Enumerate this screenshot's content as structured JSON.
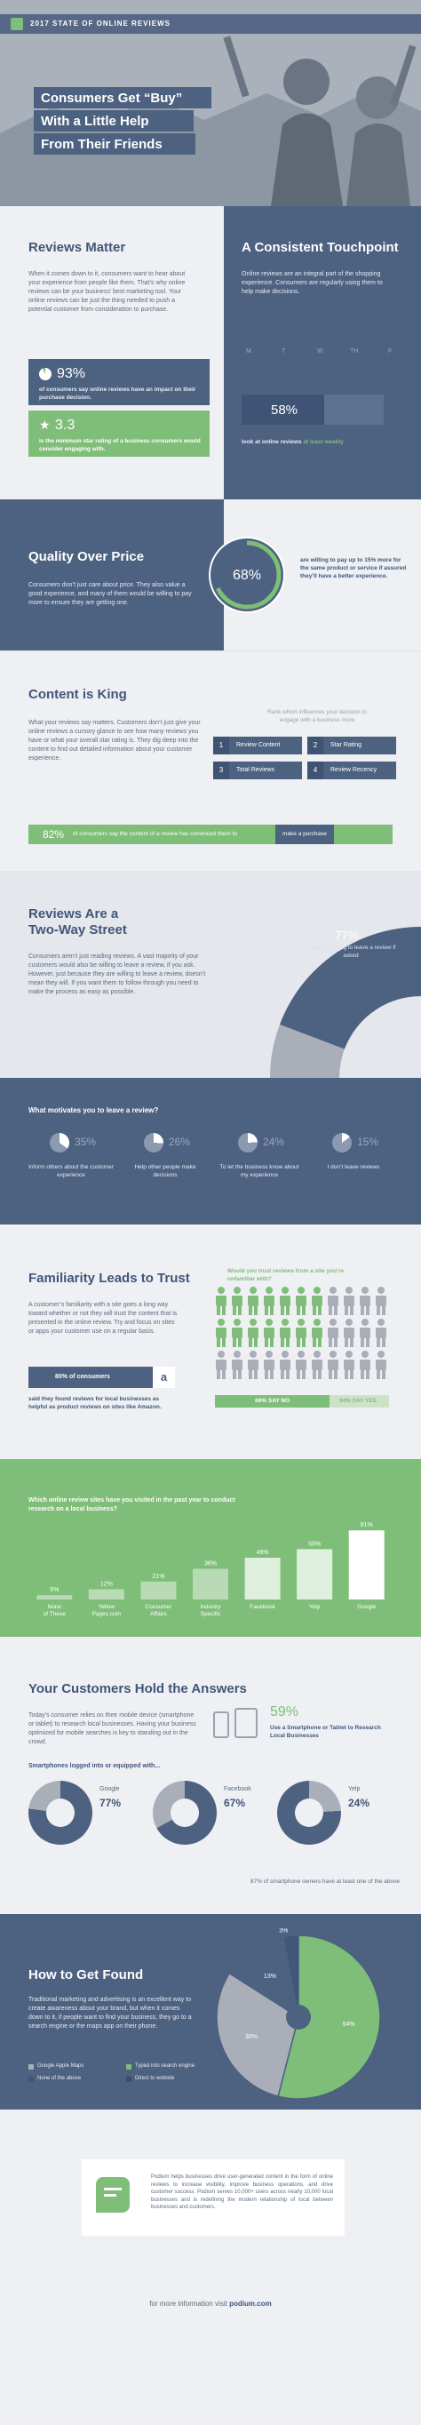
{
  "colors": {
    "navy": "#4d6180",
    "green": "#7fbe78",
    "light": "#eef0f3",
    "grey": "#a9aeb8"
  },
  "header": {
    "badge": "2017 STATE OF ONLINE REVIEWS",
    "title_lines": [
      "Consumers Get “Buy”",
      "With a Little Help",
      "From Their Friends"
    ]
  },
  "reviews_matter": {
    "heading": "Reviews Matter",
    "body": "When it comes down to it, consumers want to hear about your experience from people like them. That’s why online reviews can be your business’ best marketing tool. Your online reviews can be just the thing needed to push a potential customer from consideration to purchase.",
    "stat1_value": "93%",
    "stat1_text": "of consumers say online reviews have an impact on their purchase decision.",
    "stat2_value": "3.3",
    "stat2_text": "is the minimum star rating of a business consumers would consider engaging with."
  },
  "touchpoint": {
    "heading": "A Consistent Touchpoint",
    "body": "Online reviews are an integral part of the shopping experience. Consumers are regularly using them to help make decisions.",
    "days": [
      "M",
      "T",
      "W",
      "TH",
      "F"
    ],
    "percent": "58%",
    "caption_a": "look at online reviews",
    "caption_b": "at least weekly"
  },
  "quality": {
    "heading": "Quality Over Price",
    "body": "Consumers don’t just care about price. They also value a good experience, and many of them would be willing to pay more to ensure they are getting one.",
    "percent": "68%",
    "circle_value": 68,
    "caption_a": "are willing to pay up to 15% more for the same product or service if assured they’ll have",
    "caption_b": "a better experience."
  },
  "content_king": {
    "heading": "Content is King",
    "body": "What your reviews say matters. Customers don’t just give your online reviews a cursory glance to see how many reviews you have or what your overall star rating is. They dig deep into the content to find out detailed information about your customer experience.",
    "rank_title": "Rank which influences your decision to engage with a business more",
    "items": [
      {
        "rank": "1",
        "label": "Review Content"
      },
      {
        "rank": "2",
        "label": "Star Rating"
      },
      {
        "rank": "3",
        "label": "Total Reviews"
      },
      {
        "rank": "4",
        "label": "Review Recency"
      }
    ],
    "banner_percent": "82%",
    "banner_text": "of consumers say the content of a review has convinced them to",
    "banner_highlight": "make a purchase"
  },
  "two_way": {
    "heading_lines": [
      "Reviews Are a",
      "Two-Way Street"
    ],
    "body": "Consumers aren’t just reading reviews. A vast majority of your customers would also be willing to leave a review, if you ask. However, just because they are willing to leave a review, doesn’t mean they will. If you want them to follow through you need to make the process as easy as possible.",
    "percent": "77%",
    "gauge_value": 77,
    "caption": "would be willing to leave a review if asked"
  },
  "motivation": {
    "question": "What motivates you to leave a review?",
    "items": [
      {
        "percent": "35%",
        "value": 35,
        "text": "Inform others about the customer experience"
      },
      {
        "percent": "26%",
        "value": 26,
        "text": "Help other people make decisions"
      },
      {
        "percent": "24%",
        "value": 24,
        "text": "To let the business know about my experience"
      },
      {
        "percent": "15%",
        "value": 15,
        "text": "I don’t leave reviews"
      }
    ]
  },
  "familiarity": {
    "heading": "Familiarity Leads to Trust",
    "body": "A customer’s familiarity with a site goes a long way toward whether or not they will trust the content that is presented in the online review. Try and focus on sites or apps your customer use on a regular basis.",
    "bar_text": "80% of consumers",
    "bar_icon": "a",
    "caption": "said they found reviews for local businesses as helpful as product reviews on sites like Amazon.",
    "question": "Would you trust reviews from a site you’re unfamiliar with?",
    "no_share": 0.66,
    "no_label": "66% SAY NO",
    "yes_label": "34% SAY YES"
  },
  "sites_chart": {
    "question": "Which online review sites have you visited in the past year to conduct research on a local business?",
    "items": [
      {
        "label": "None of These",
        "value": 5,
        "pct": "5%"
      },
      {
        "label": "Yellow Pages.com",
        "value": 12,
        "pct": "12%"
      },
      {
        "label": "Consumer Affairs",
        "value": 21,
        "pct": "21%"
      },
      {
        "label": "Industry Specific",
        "value": 36,
        "pct": "36%"
      },
      {
        "label": "Facebook",
        "value": 49,
        "pct": "49%"
      },
      {
        "label": "Yelp",
        "value": 59,
        "pct": "59%"
      },
      {
        "label": "Google",
        "value": 81,
        "pct": "81%"
      }
    ]
  },
  "answers": {
    "heading": "Your Customers Hold the Answers",
    "body": "Today’s consumer relies on their mobile device (smartphone or tablet) to research local businesses. Having your business optimized for mobile searches is key to standing out in the crowd.",
    "stat": "59%",
    "stat_text": "Use a Smartphone or Tablet to Research Local Businesses",
    "logged_title": "Smartphones logged into or equipped with...",
    "donuts": [
      {
        "name": "Google",
        "pct": "77%",
        "value": 77
      },
      {
        "name": "Facebook",
        "pct": "67%",
        "value": 67
      },
      {
        "name": "Yelp",
        "pct": "24%",
        "value": 24
      }
    ],
    "footnote": "87% of smartphone owners have at least one of the above"
  },
  "found": {
    "heading": "How to Get Found",
    "body": "Traditional marketing and advertising is an excellent way to create awareness about your brand, but when it comes down to it, if people want to find your business, they go to a search engine or the maps app on their phone.",
    "legend": [
      "Google Apple Maps",
      "Typed into search engine",
      "None of the above",
      "Direct to website"
    ],
    "pie": [
      {
        "label": "54%",
        "value": 54,
        "color": "#7fbe78"
      },
      {
        "label": "30%",
        "value": 30,
        "color": "#a9aeb8"
      },
      {
        "label": "13%",
        "value": 13,
        "color": "#4d6180"
      },
      {
        "label": "3%",
        "value": 3,
        "color": "#415679"
      }
    ]
  },
  "footer": {
    "about": "Podium helps businesses drive user-generated content in the form of online reviews to increase visibility, improve business operations, and drive customer success. Podium serves 10,000+ users across nearly 10,000 local businesses and is redefining the modern relationship of local between businesses and customers.",
    "more_a": "for more information visit",
    "more_b": "podium.com"
  }
}
